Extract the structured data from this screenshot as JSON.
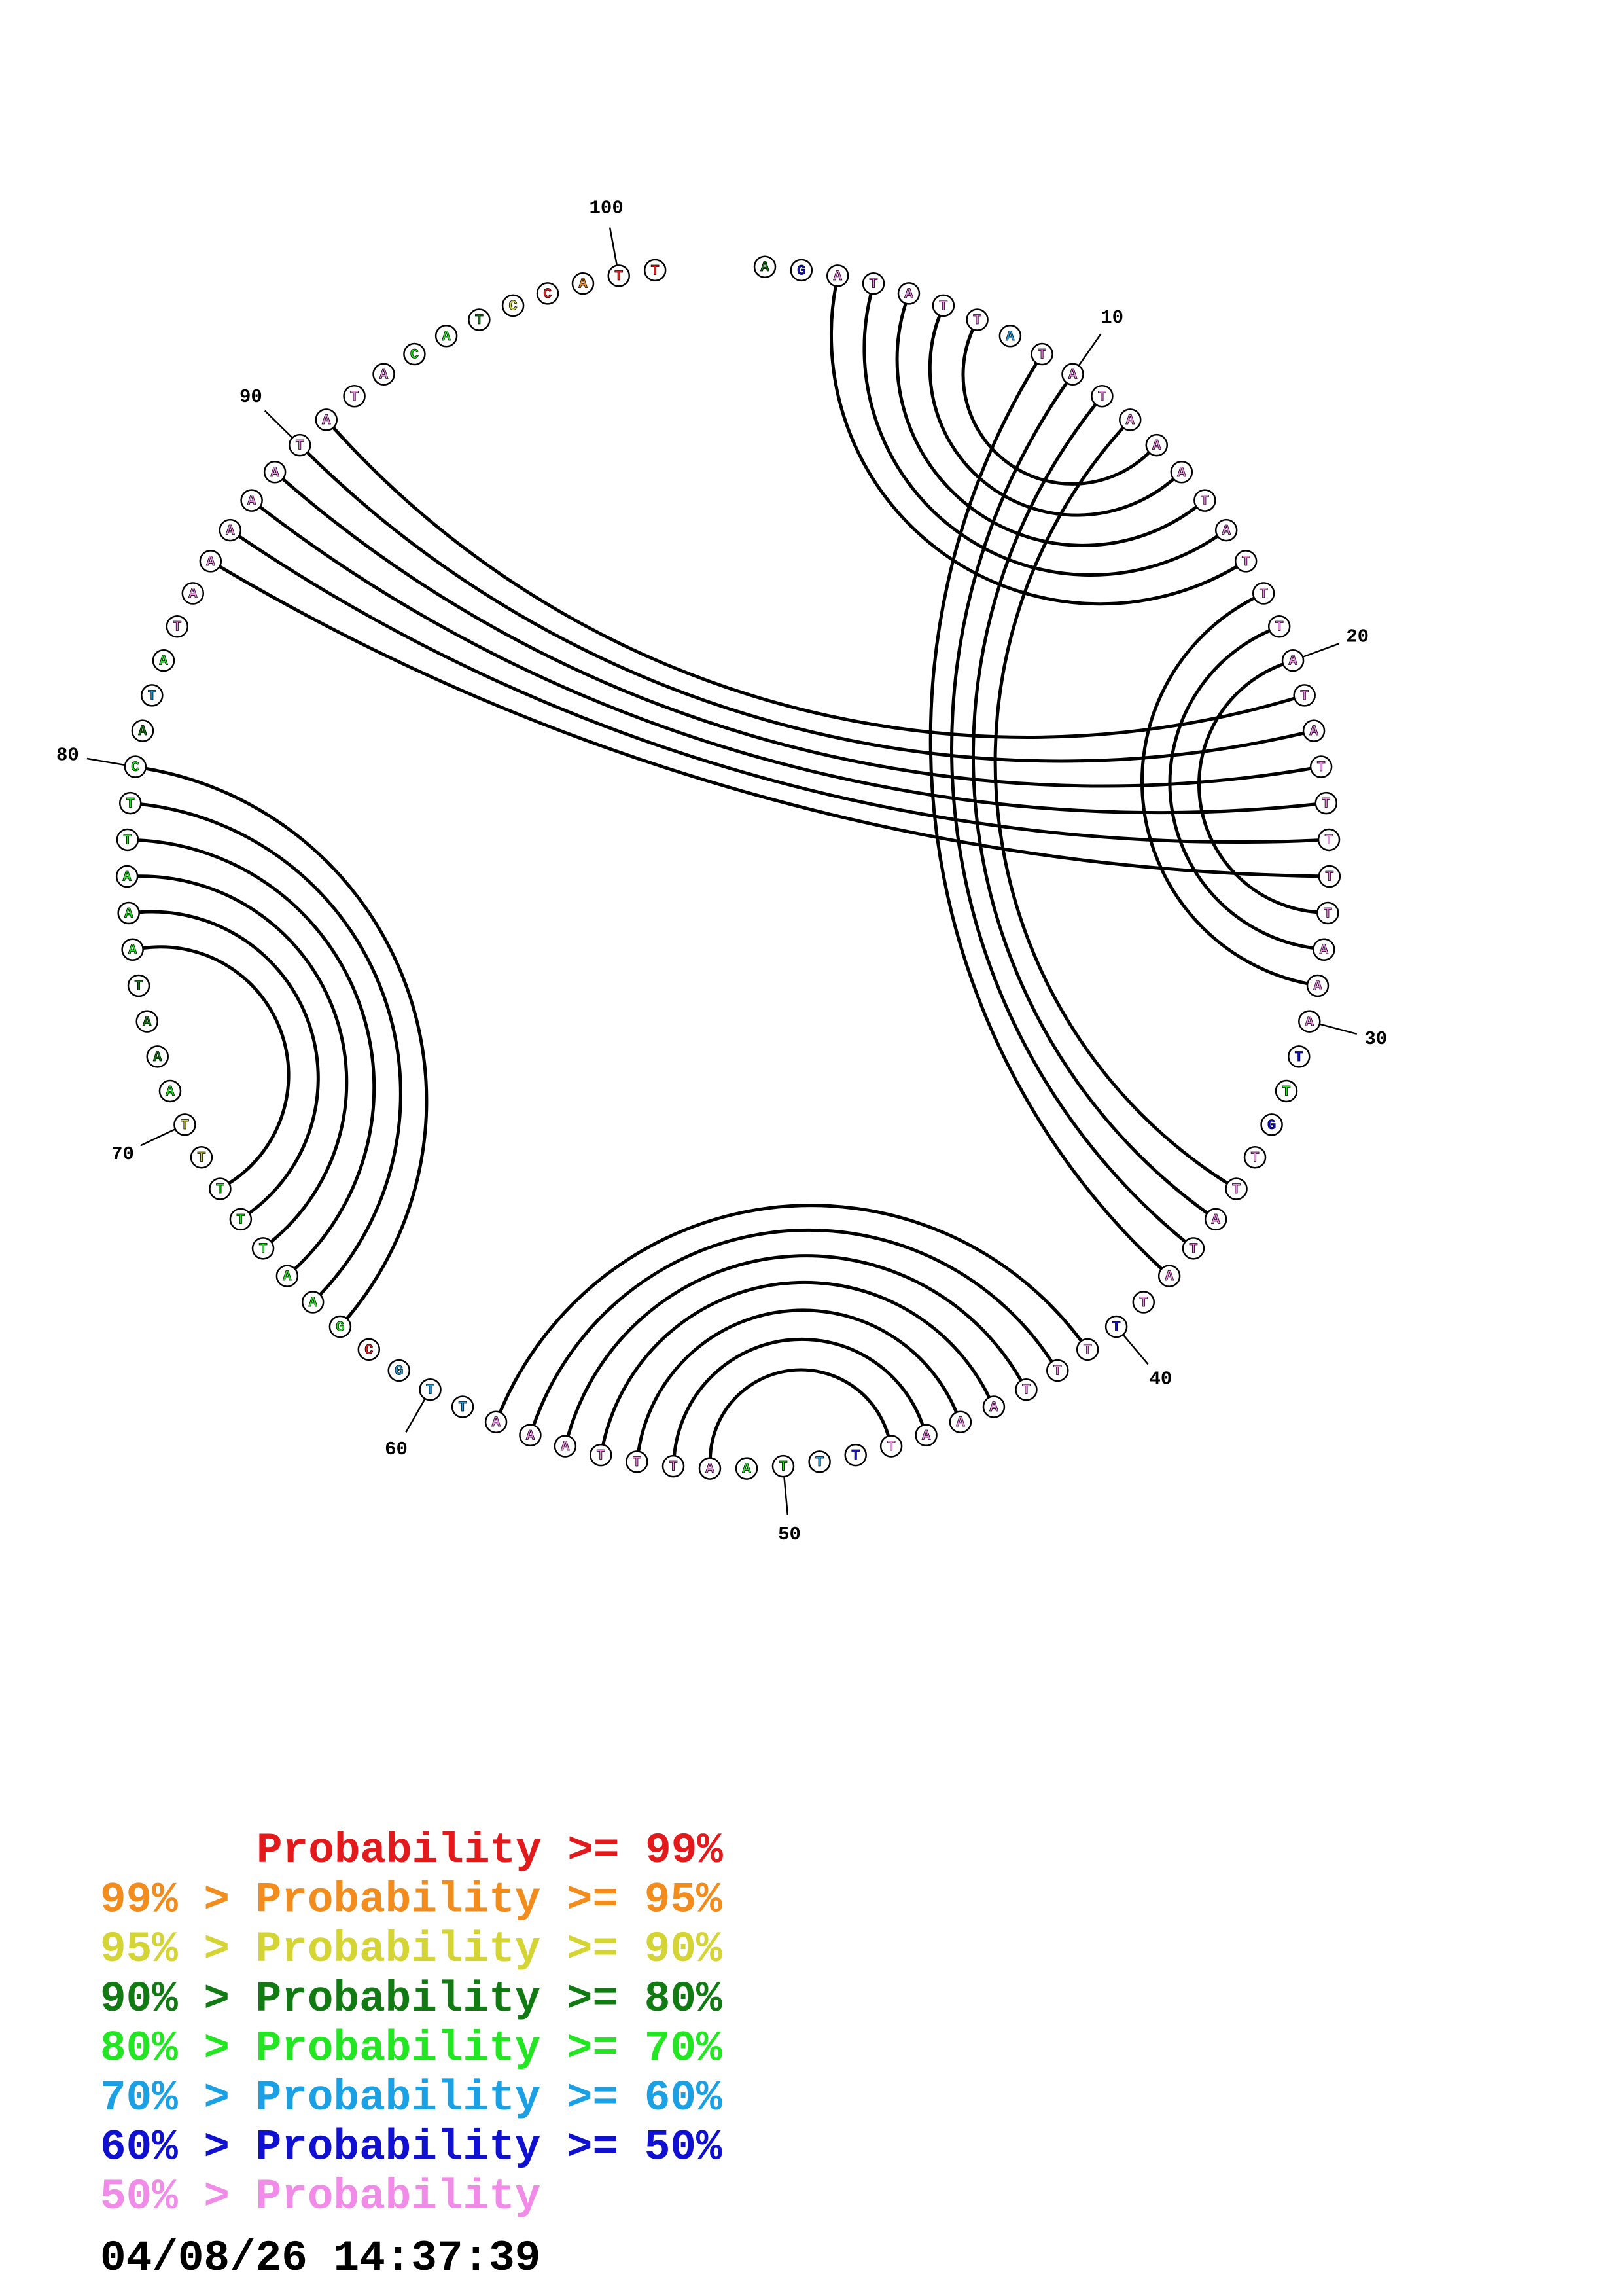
{
  "bases": [
    "A",
    "G",
    "A",
    "T",
    "A",
    "T",
    "T",
    "A",
    "T",
    "A",
    "T",
    "A",
    "A",
    "A",
    "T",
    "A",
    "T",
    "T",
    "T",
    "A",
    "T",
    "A",
    "T",
    "T",
    "T",
    "T",
    "T",
    "A",
    "A",
    "A",
    "T",
    "T",
    "G",
    "T",
    "T",
    "A",
    "T",
    "A",
    "T",
    "T",
    "T",
    "T",
    "T",
    "A",
    "A",
    "A",
    "T",
    "T",
    "T",
    "T",
    "A",
    "A",
    "T",
    "T",
    "T",
    "A",
    "A",
    "A",
    "T",
    "T",
    "G",
    "C",
    "G",
    "A",
    "A",
    "T",
    "T",
    "T",
    "T",
    "T",
    "A",
    "A",
    "A",
    "T",
    "A",
    "A",
    "A",
    "T",
    "T",
    "C",
    "A",
    "T",
    "A",
    "T",
    "A",
    "A",
    "A",
    "A",
    "A",
    "T",
    "A",
    "T",
    "A",
    "C",
    "A",
    "T",
    "C",
    "C",
    "A",
    "T",
    "T"
  ],
  "classes": [
    3,
    6,
    7,
    7,
    7,
    7,
    7,
    5,
    7,
    7,
    7,
    7,
    7,
    7,
    7,
    7,
    7,
    7,
    7,
    7,
    7,
    7,
    7,
    7,
    7,
    7,
    7,
    7,
    7,
    7,
    6,
    4,
    6,
    7,
    7,
    7,
    7,
    7,
    7,
    6,
    7,
    7,
    7,
    7,
    7,
    7,
    7,
    6,
    5,
    4,
    4,
    7,
    7,
    7,
    7,
    7,
    7,
    7,
    5,
    5,
    5,
    0,
    4,
    4,
    4,
    4,
    4,
    4,
    2,
    2,
    4,
    3,
    3,
    3,
    4,
    4,
    4,
    4,
    4,
    4,
    3,
    5,
    4,
    7,
    7,
    7,
    7,
    7,
    7,
    7,
    7,
    7,
    7,
    4,
    4,
    3,
    2,
    0,
    1,
    0,
    0
  ],
  "pairs": [
    [
      3,
      17
    ],
    [
      4,
      16
    ],
    [
      5,
      15
    ],
    [
      6,
      14
    ],
    [
      7,
      13
    ],
    [
      9,
      38
    ],
    [
      10,
      37
    ],
    [
      11,
      36
    ],
    [
      12,
      35
    ],
    [
      18,
      29
    ],
    [
      19,
      28
    ],
    [
      20,
      27
    ],
    [
      21,
      91
    ],
    [
      22,
      90
    ],
    [
      23,
      89
    ],
    [
      24,
      88
    ],
    [
      25,
      87
    ],
    [
      26,
      86
    ],
    [
      41,
      58
    ],
    [
      42,
      57
    ],
    [
      43,
      56
    ],
    [
      44,
      55
    ],
    [
      45,
      54
    ],
    [
      46,
      53
    ],
    [
      47,
      52
    ],
    [
      63,
      80
    ],
    [
      64,
      79
    ],
    [
      65,
      78
    ],
    [
      66,
      77
    ],
    [
      67,
      76
    ],
    [
      68,
      75
    ]
  ],
  "ticks": [
    10,
    20,
    30,
    40,
    50,
    60,
    70,
    80,
    90,
    100
  ],
  "legend": [
    {
      "text": "Probability >= 99%",
      "color": "#e31a1c"
    },
    {
      "text": "99% > Probability >= 95%",
      "color": "#f28c1c"
    },
    {
      "text": "95% > Probability >= 90%",
      "color": "#d4d435"
    },
    {
      "text": "90% > Probability >= 80%",
      "color": "#127a12"
    },
    {
      "text": "80% > Probability >= 70%",
      "color": "#22e622"
    },
    {
      "text": "70% > Probability >= 60%",
      "color": "#1ca0e4"
    },
    {
      "text": "60% > Probability >= 50%",
      "color": "#1010d0"
    },
    {
      "text": "50% > Probability",
      "color": "#f08ce8"
    }
  ],
  "timestamp": "04/08/26 14:37:39"
}
